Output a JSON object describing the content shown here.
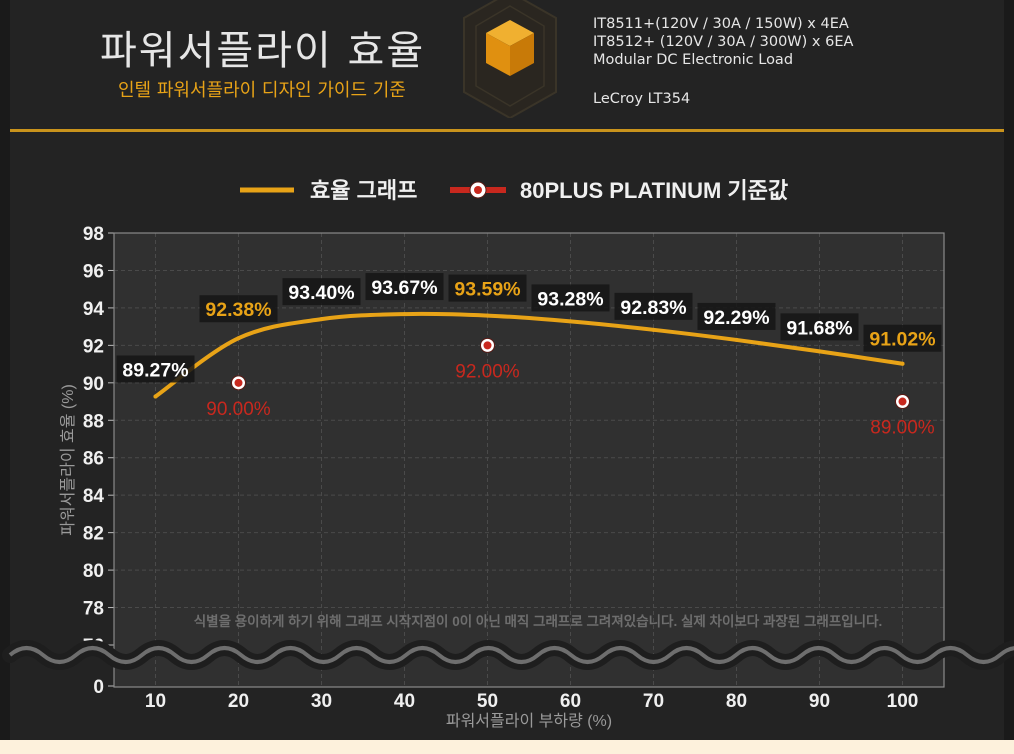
{
  "header": {
    "title": "파워서플라이 효율",
    "subtitle": "인텔 파워서플라이 디자인 가이드 기준",
    "specs": [
      "IT8511+(120V / 30A / 150W) x 4EA",
      "IT8512+ (120V / 30A / 300W) x 6EA",
      "Modular DC Electronic Load",
      "LeCroy LT354"
    ]
  },
  "colors": {
    "accent": "#e8a317",
    "efficiency_line": "#e8a317",
    "platinum": "#c8281e",
    "background": "#232323",
    "plot_background": "#303030"
  },
  "chart_data": {
    "type": "line",
    "legend": {
      "placement": "top-center",
      "entries": [
        "효율 그래프",
        "80PLUS PLATINUM 기준값"
      ]
    },
    "xlabel": "파워서플라이 부하량 (%)",
    "ylabel": "파워서플라이 효율 (%)",
    "x_ticks": [
      10,
      20,
      30,
      40,
      50,
      60,
      70,
      80,
      90,
      100
    ],
    "y_ticks": [
      0,
      76,
      78,
      80,
      82,
      84,
      86,
      88,
      90,
      92,
      94,
      96,
      98
    ],
    "ylim": [
      76,
      98
    ],
    "axis_break": true,
    "grid": true,
    "annotation": "식별을 용이하게 하기 위해 그래프 시작지점이 0이 아닌 매직 그래프로 그려져있습니다. 실제 차이보다 과장된 그래프입니다.",
    "series": [
      {
        "name": "효율 그래프",
        "x": [
          10,
          20,
          30,
          40,
          50,
          60,
          70,
          80,
          90,
          100
        ],
        "y": [
          89.27,
          92.38,
          93.4,
          93.67,
          93.59,
          93.28,
          92.83,
          92.29,
          91.68,
          91.02
        ],
        "labels": [
          "89.27%",
          "92.38%",
          "93.40%",
          "93.67%",
          "93.59%",
          "93.28%",
          "92.83%",
          "92.29%",
          "91.68%",
          "91.02%"
        ]
      },
      {
        "name": "80PLUS PLATINUM 기준값",
        "x": [
          20,
          50,
          100
        ],
        "y": [
          90.0,
          92.0,
          89.0
        ],
        "labels": [
          "90.00%",
          "92.00%",
          "89.00%"
        ]
      }
    ]
  }
}
